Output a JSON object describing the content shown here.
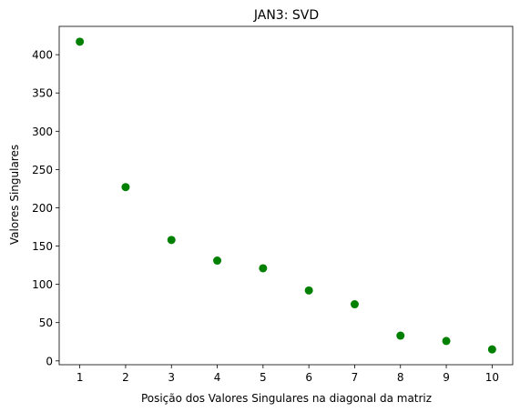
{
  "chart_data": {
    "type": "scatter",
    "title": "JAN3: SVD",
    "xlabel": "Posição dos Valores Singulares na diagonal da matriz",
    "ylabel": "Valores Singulares",
    "x": [
      1,
      2,
      3,
      4,
      5,
      6,
      7,
      8,
      9,
      10
    ],
    "y": [
      417,
      227,
      158,
      131,
      121,
      92,
      74,
      33,
      26,
      15
    ],
    "xlim": [
      0.55,
      10.45
    ],
    "ylim": [
      -5,
      437
    ],
    "xticks": [
      "1",
      "2",
      "3",
      "4",
      "5",
      "6",
      "7",
      "8",
      "9",
      "10"
    ],
    "yticks": [
      "0",
      "50",
      "100",
      "150",
      "200",
      "250",
      "300",
      "350",
      "400"
    ],
    "marker_color": "#008000",
    "grid": false,
    "legend": "none"
  }
}
